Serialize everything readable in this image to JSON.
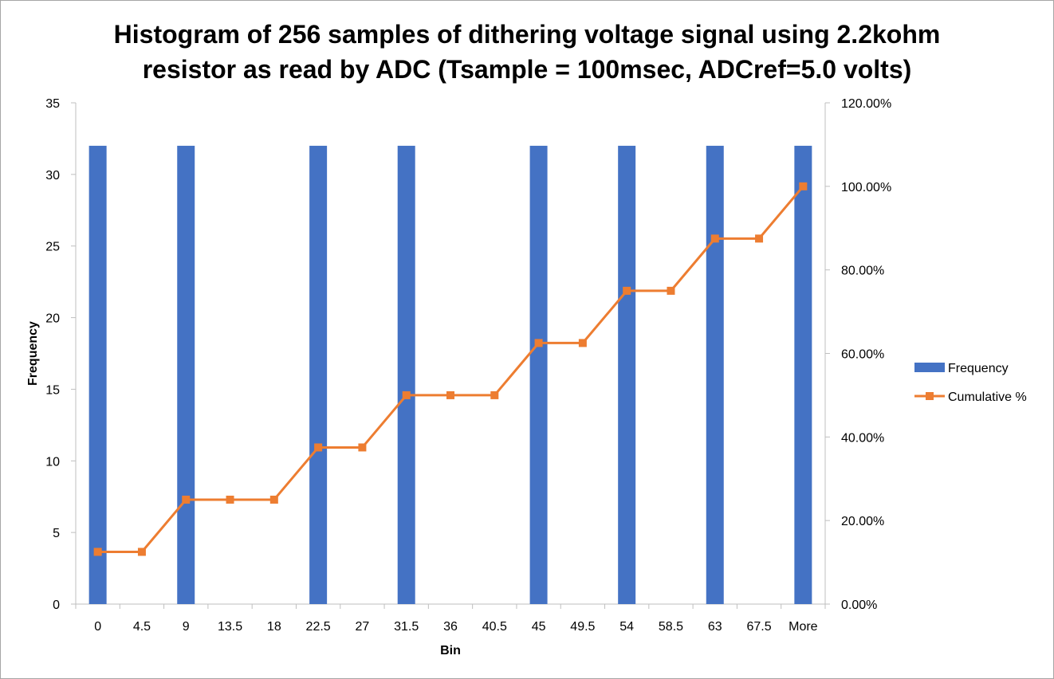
{
  "chart_data": {
    "type": "bar",
    "title_lines": [
      "Histogram of 256 samples of dithering voltage signal using 2.2kohm",
      "resistor as read by ADC (Tsample = 100msec, ADCref=5.0 volts)"
    ],
    "xlabel": "Bin",
    "ylabel": "Frequency",
    "categories": [
      "0",
      "4.5",
      "9",
      "13.5",
      "18",
      "22.5",
      "27",
      "31.5",
      "36",
      "40.5",
      "45",
      "49.5",
      "54",
      "58.5",
      "63",
      "67.5",
      "More"
    ],
    "series": [
      {
        "name": "Frequency",
        "type": "bar",
        "axis": "left",
        "color": "#4472C4",
        "values": [
          32,
          0,
          32,
          0,
          0,
          32,
          0,
          32,
          0,
          0,
          32,
          0,
          32,
          0,
          32,
          0,
          32
        ]
      },
      {
        "name": "Cumulative %",
        "type": "line",
        "axis": "right",
        "color": "#ED7D31",
        "values": [
          12.5,
          12.5,
          25.0,
          25.0,
          25.0,
          37.5,
          37.5,
          50.0,
          50.0,
          50.0,
          62.5,
          62.5,
          75.0,
          75.0,
          87.5,
          87.5,
          100.0
        ]
      }
    ],
    "y_left": {
      "min": 0,
      "max": 35,
      "step": 5,
      "ticks": [
        "0",
        "5",
        "10",
        "15",
        "20",
        "25",
        "30",
        "35"
      ]
    },
    "y_right": {
      "min": 0,
      "max": 120,
      "step": 20,
      "ticks": [
        "0.00%",
        "20.00%",
        "40.00%",
        "60.00%",
        "80.00%",
        "100.00%",
        "120.00%"
      ]
    },
    "grid": false,
    "legend_position": "right"
  }
}
